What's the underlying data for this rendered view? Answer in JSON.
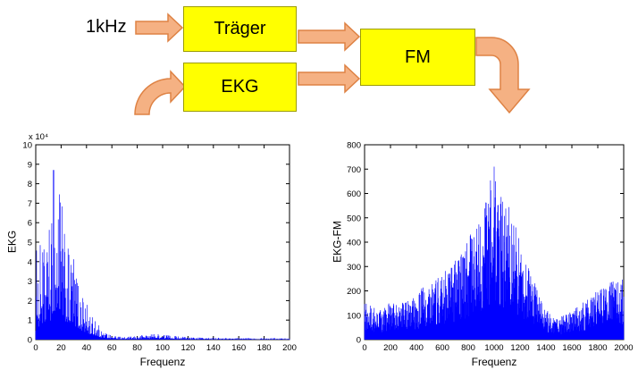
{
  "diagram": {
    "input_label": "1kHz",
    "blocks": [
      {
        "id": "traeger",
        "label": "Träger"
      },
      {
        "id": "ekg",
        "label": "EKG"
      },
      {
        "id": "fm",
        "label": "FM"
      }
    ]
  },
  "colors": {
    "block_fill": "#FFFF00",
    "block_border": "#9C9C00",
    "arrow_fill": "#F5B183",
    "arrow_stroke": "#DE8244",
    "spectrum": "#0000FF"
  },
  "chart_data": [
    {
      "type": "line",
      "plot_style": "magnitude-spectrum",
      "title": "",
      "xlabel": "Frequenz",
      "ylabel": "EKG",
      "y_multiplier_label": "x 10⁴",
      "xlim": [
        0,
        200
      ],
      "ylim": [
        0,
        10
      ],
      "xticks": [
        0,
        20,
        40,
        60,
        80,
        100,
        120,
        140,
        160,
        180,
        200
      ],
      "yticks": [
        0,
        1,
        2,
        3,
        4,
        5,
        6,
        7,
        8,
        9,
        10
      ],
      "peak": [
        14,
        8.7
      ],
      "samples": 620,
      "noise": {
        "base": 0.18,
        "pow": 2.2
      },
      "envelope": [
        [
          0,
          0.5
        ],
        [
          1,
          7.2
        ],
        [
          2,
          4.0
        ],
        [
          3,
          3.2
        ],
        [
          4,
          6.3
        ],
        [
          5,
          4.5
        ],
        [
          6,
          5.2
        ],
        [
          7,
          4.2
        ],
        [
          8,
          5.4
        ],
        [
          9,
          4.6
        ],
        [
          10,
          6.2
        ],
        [
          12,
          5.2
        ],
        [
          14,
          8.7
        ],
        [
          16,
          6.8
        ],
        [
          18,
          8.4
        ],
        [
          20,
          7.8
        ],
        [
          22,
          5.8
        ],
        [
          24,
          5.0
        ],
        [
          26,
          4.6
        ],
        [
          28,
          4.1
        ],
        [
          30,
          4.4
        ],
        [
          32,
          3.6
        ],
        [
          34,
          3.1
        ],
        [
          36,
          2.6
        ],
        [
          38,
          2.2
        ],
        [
          40,
          1.9
        ],
        [
          44,
          1.3
        ],
        [
          48,
          0.9
        ],
        [
          52,
          0.55
        ],
        [
          56,
          0.35
        ],
        [
          60,
          0.22
        ],
        [
          70,
          0.13
        ],
        [
          80,
          0.18
        ],
        [
          85,
          0.26
        ],
        [
          90,
          0.3
        ],
        [
          95,
          0.3
        ],
        [
          100,
          0.28
        ],
        [
          105,
          0.24
        ],
        [
          110,
          0.2
        ],
        [
          115,
          0.16
        ],
        [
          120,
          0.13
        ],
        [
          130,
          0.1
        ],
        [
          140,
          0.09
        ],
        [
          160,
          0.08
        ],
        [
          180,
          0.08
        ],
        [
          200,
          0.08
        ]
      ]
    },
    {
      "type": "line",
      "plot_style": "magnitude-spectrum",
      "title": "",
      "xlabel": "Frequenz",
      "ylabel": "EKG-FM",
      "xlim": [
        0,
        2000
      ],
      "ylim": [
        0,
        800
      ],
      "xticks": [
        0,
        200,
        400,
        600,
        800,
        1000,
        1200,
        1400,
        1600,
        1800,
        2000
      ],
      "yticks": [
        0,
        100,
        200,
        300,
        400,
        500,
        600,
        700,
        800
      ],
      "peak": [
        1000,
        710
      ],
      "samples": 780,
      "noise": {
        "base": 0.22,
        "pow": 1.1
      },
      "envelope": [
        [
          0,
          150
        ],
        [
          50,
          140
        ],
        [
          100,
          125
        ],
        [
          150,
          140
        ],
        [
          200,
          155
        ],
        [
          250,
          150
        ],
        [
          300,
          165
        ],
        [
          350,
          175
        ],
        [
          400,
          195
        ],
        [
          450,
          215
        ],
        [
          500,
          245
        ],
        [
          550,
          255
        ],
        [
          600,
          275
        ],
        [
          650,
          295
        ],
        [
          700,
          325
        ],
        [
          750,
          355
        ],
        [
          800,
          415
        ],
        [
          850,
          465
        ],
        [
          900,
          535
        ],
        [
          950,
          615
        ],
        [
          980,
          695
        ],
        [
          1000,
          710
        ],
        [
          1020,
          675
        ],
        [
          1050,
          600
        ],
        [
          1100,
          560
        ],
        [
          1150,
          515
        ],
        [
          1200,
          420
        ],
        [
          1250,
          330
        ],
        [
          1300,
          255
        ],
        [
          1350,
          180
        ],
        [
          1400,
          130
        ],
        [
          1450,
          100
        ],
        [
          1500,
          92
        ],
        [
          1550,
          102
        ],
        [
          1600,
          118
        ],
        [
          1650,
          138
        ],
        [
          1700,
          158
        ],
        [
          1750,
          178
        ],
        [
          1800,
          205
        ],
        [
          1850,
          228
        ],
        [
          1900,
          238
        ],
        [
          1950,
          248
        ],
        [
          2000,
          258
        ]
      ]
    }
  ]
}
